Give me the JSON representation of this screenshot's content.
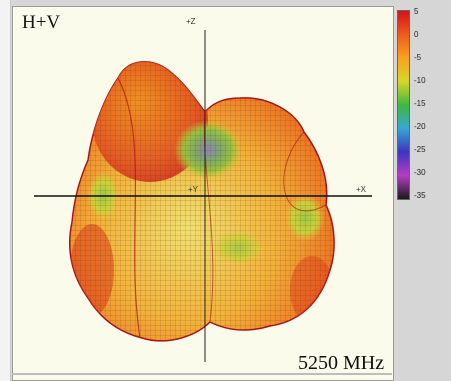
{
  "chart_data": {
    "type": "3d-radiation-pattern",
    "title": "H+V",
    "frequency_label": "5250 MHz",
    "axes": {
      "z": "+Z",
      "y": "+Y",
      "x": "+X"
    },
    "colorbar": {
      "ticks": [
        "5",
        "0",
        "-5",
        "-10",
        "-15",
        "-20",
        "-25",
        "-30",
        "-35"
      ],
      "colors": [
        "#d4141a",
        "#ee5a1c",
        "#f9a21f",
        "#d6d62a",
        "#3db83e",
        "#37a7d3",
        "#3b36bf",
        "#b73cc6",
        "#1a1a1a"
      ]
    }
  }
}
